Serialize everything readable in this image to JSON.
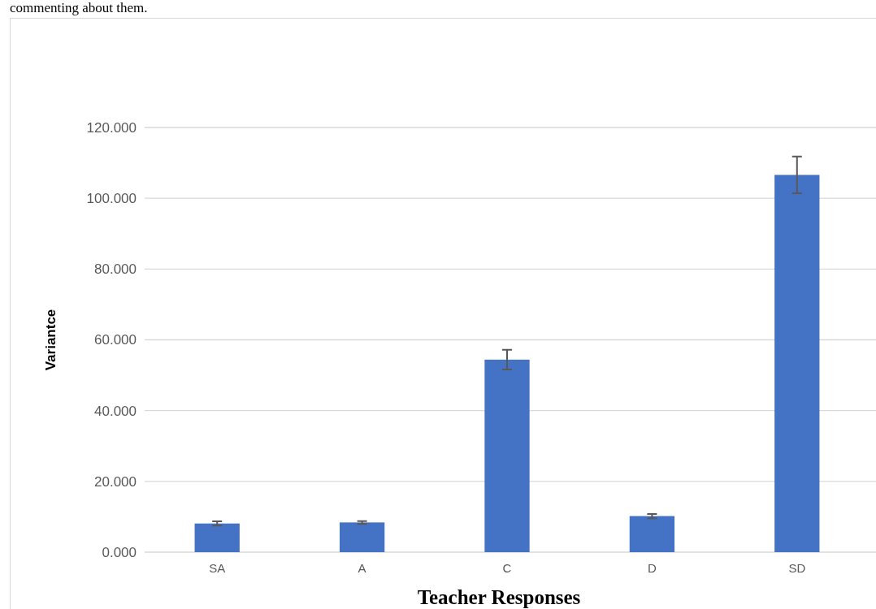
{
  "chart_data": {
    "type": "bar",
    "categories": [
      "SA",
      "A",
      "C",
      "D",
      "SD"
    ],
    "series": [
      {
        "color": "#4472c4",
        "values": [
          8.1,
          8.4,
          54.4,
          10.2,
          106.6
        ],
        "errors": [
          0.6,
          0.4,
          2.8,
          0.6,
          5.2
        ]
      }
    ],
    "ylim": [
      0,
      120
    ],
    "yticks": [
      {
        "value": 0,
        "label": "0.000"
      },
      {
        "value": 20,
        "label": "20.000"
      },
      {
        "value": 40,
        "label": "40.000"
      },
      {
        "value": 60,
        "label": "60.000"
      },
      {
        "value": 80,
        "label": "80.000"
      },
      {
        "value": 100,
        "label": "100.000"
      },
      {
        "value": 120,
        "label": "120.000"
      }
    ],
    "grid": "y",
    "xlabel": "Teacher Responses",
    "ylabel": "Variantce",
    "annotations": [
      "commenting about them."
    ]
  }
}
